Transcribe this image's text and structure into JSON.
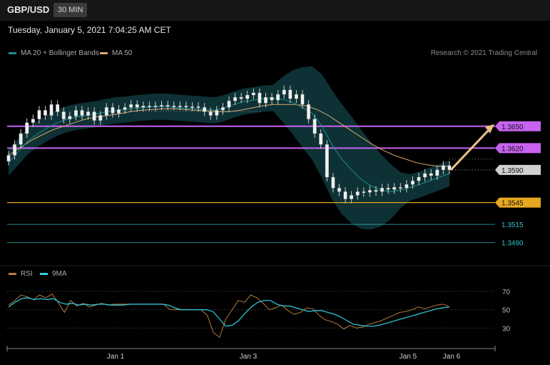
{
  "header": {
    "symbol": "GBP/USD",
    "timeframe": "30 MIN"
  },
  "datetime": "Tuesday, January 5, 2021 7:04:25 AM CET",
  "copyright": "Research © 2021 Trading Central",
  "colors": {
    "bands": "#0f3a3d",
    "ma20": "#1f8f93",
    "ma50": "#d9a86c",
    "candle": "#f0f0f0",
    "resistance": "#c763f0",
    "support": "#e6a820",
    "target": "#2ec4cc",
    "rsi": "#b47a3a",
    "rsi_ma": "#2fd0e0",
    "arrow": "#e8c08a"
  },
  "chart_data": [
    {
      "type": "line",
      "title": "",
      "legend": [
        {
          "name": "MA 20 + Bollinger Bands"
        },
        {
          "name": "MA 50"
        }
      ],
      "y_range": [
        1.3465,
        1.3755
      ],
      "x_ticks": [
        "Jan 1",
        "Jan 3",
        "Jan 5",
        "Jan 6"
      ],
      "series": [
        {
          "name": "price",
          "values": [
            1.361,
            1.3625,
            1.364,
            1.3655,
            1.366,
            1.3672,
            1.3665,
            1.368,
            1.367,
            1.366,
            1.3664,
            1.3672,
            1.3665,
            1.367,
            1.3658,
            1.3665,
            1.3676,
            1.3668,
            1.3673,
            1.3676,
            1.368,
            1.3676,
            1.3678,
            1.3677,
            1.3678,
            1.3679,
            1.3678,
            1.3678,
            1.3678,
            1.3677,
            1.3677,
            1.3676,
            1.367,
            1.3665,
            1.3672,
            1.3676,
            1.3685,
            1.369,
            1.3688,
            1.3693,
            1.3696,
            1.3682,
            1.369,
            1.3686,
            1.3694,
            1.37,
            1.3688,
            1.3694,
            1.368,
            1.366,
            1.364,
            1.3625,
            1.358,
            1.3565,
            1.356,
            1.355,
            1.3555,
            1.356,
            1.3559,
            1.3562,
            1.356,
            1.3565,
            1.3563,
            1.3566,
            1.3565,
            1.357,
            1.3575,
            1.358,
            1.3585,
            1.3582,
            1.359,
            1.3596,
            1.359
          ]
        },
        {
          "name": "MA 20",
          "values": [
            1.36,
            1.3615,
            1.363,
            1.364,
            1.3648,
            1.3655,
            1.366,
            1.3663,
            1.3665,
            1.3667,
            1.367,
            1.3672,
            1.3673,
            1.3675,
            1.3676,
            1.3677,
            1.3677,
            1.3676,
            1.3675,
            1.3674,
            1.3673,
            1.3672,
            1.3675,
            1.368,
            1.3684,
            1.3686,
            1.3688,
            1.3689,
            1.3687,
            1.3683,
            1.3676,
            1.3668,
            1.365,
            1.3625,
            1.3605,
            1.359,
            1.3577,
            1.3568,
            1.3562,
            1.356,
            1.3562,
            1.3566,
            1.357,
            1.3575,
            1.358,
            1.3585
          ]
        },
        {
          "name": "MA 50",
          "values": [
            1.361,
            1.362,
            1.363,
            1.3638,
            1.3645,
            1.365,
            1.3655,
            1.366,
            1.3663,
            1.3665,
            1.3667,
            1.367,
            1.3672,
            1.3673,
            1.3674,
            1.3674,
            1.3673,
            1.3672,
            1.3671,
            1.367,
            1.367,
            1.3672,
            1.3675,
            1.3678,
            1.368,
            1.368,
            1.368,
            1.3678,
            1.3673,
            1.3665,
            1.3655,
            1.3645,
            1.3635,
            1.3625,
            1.3617,
            1.361,
            1.3605,
            1.36,
            1.3597,
            1.3595,
            1.3595
          ]
        },
        {
          "name": "RSI",
          "values": [
            55,
            60,
            66,
            64,
            61,
            66,
            63,
            67,
            58,
            47,
            60,
            54,
            57,
            53,
            55,
            57,
            55,
            56,
            56,
            56,
            56,
            56,
            56,
            56,
            56,
            56,
            50,
            50,
            50,
            50,
            50,
            50,
            44,
            25,
            20,
            40,
            50,
            60,
            58,
            66,
            63,
            57,
            50,
            52,
            55,
            49,
            45,
            47,
            52,
            51,
            44,
            39,
            37,
            34,
            29,
            33,
            30,
            31,
            34,
            36,
            38,
            41,
            44,
            47,
            48,
            50,
            53,
            51,
            53,
            55,
            56,
            53
          ]
        },
        {
          "name": "9MA",
          "values": [
            53,
            58,
            62,
            63,
            61,
            62,
            61,
            62,
            58,
            56,
            57,
            55,
            56,
            55,
            56,
            56,
            55,
            55,
            55,
            56,
            56,
            56,
            56,
            56,
            56,
            55,
            52,
            50,
            50,
            50,
            50,
            50,
            48,
            40,
            32,
            33,
            38,
            46,
            53,
            58,
            60,
            60,
            56,
            54,
            54,
            52,
            50,
            48,
            49,
            49,
            47,
            45,
            42,
            38,
            34,
            33,
            32,
            32,
            33,
            35,
            37,
            39,
            41,
            43,
            45,
            47,
            49,
            51,
            52,
            53
          ]
        }
      ],
      "levels": [
        {
          "value": "1.3650",
          "role": "resistance"
        },
        {
          "value": "1.3620",
          "role": "resistance"
        },
        {
          "value": "1.3590",
          "role": "last"
        },
        {
          "value": "1.3545",
          "role": "support"
        },
        {
          "value": "1.3515",
          "role": "target"
        },
        {
          "value": "1.3490",
          "role": "target"
        }
      ],
      "rsi_panel": {
        "legend": [
          {
            "name": "RSI"
          },
          {
            "name": "9MA"
          }
        ],
        "y_range": [
          10,
          80
        ],
        "ticks": [
          "70",
          "50",
          "30"
        ]
      }
    }
  ]
}
